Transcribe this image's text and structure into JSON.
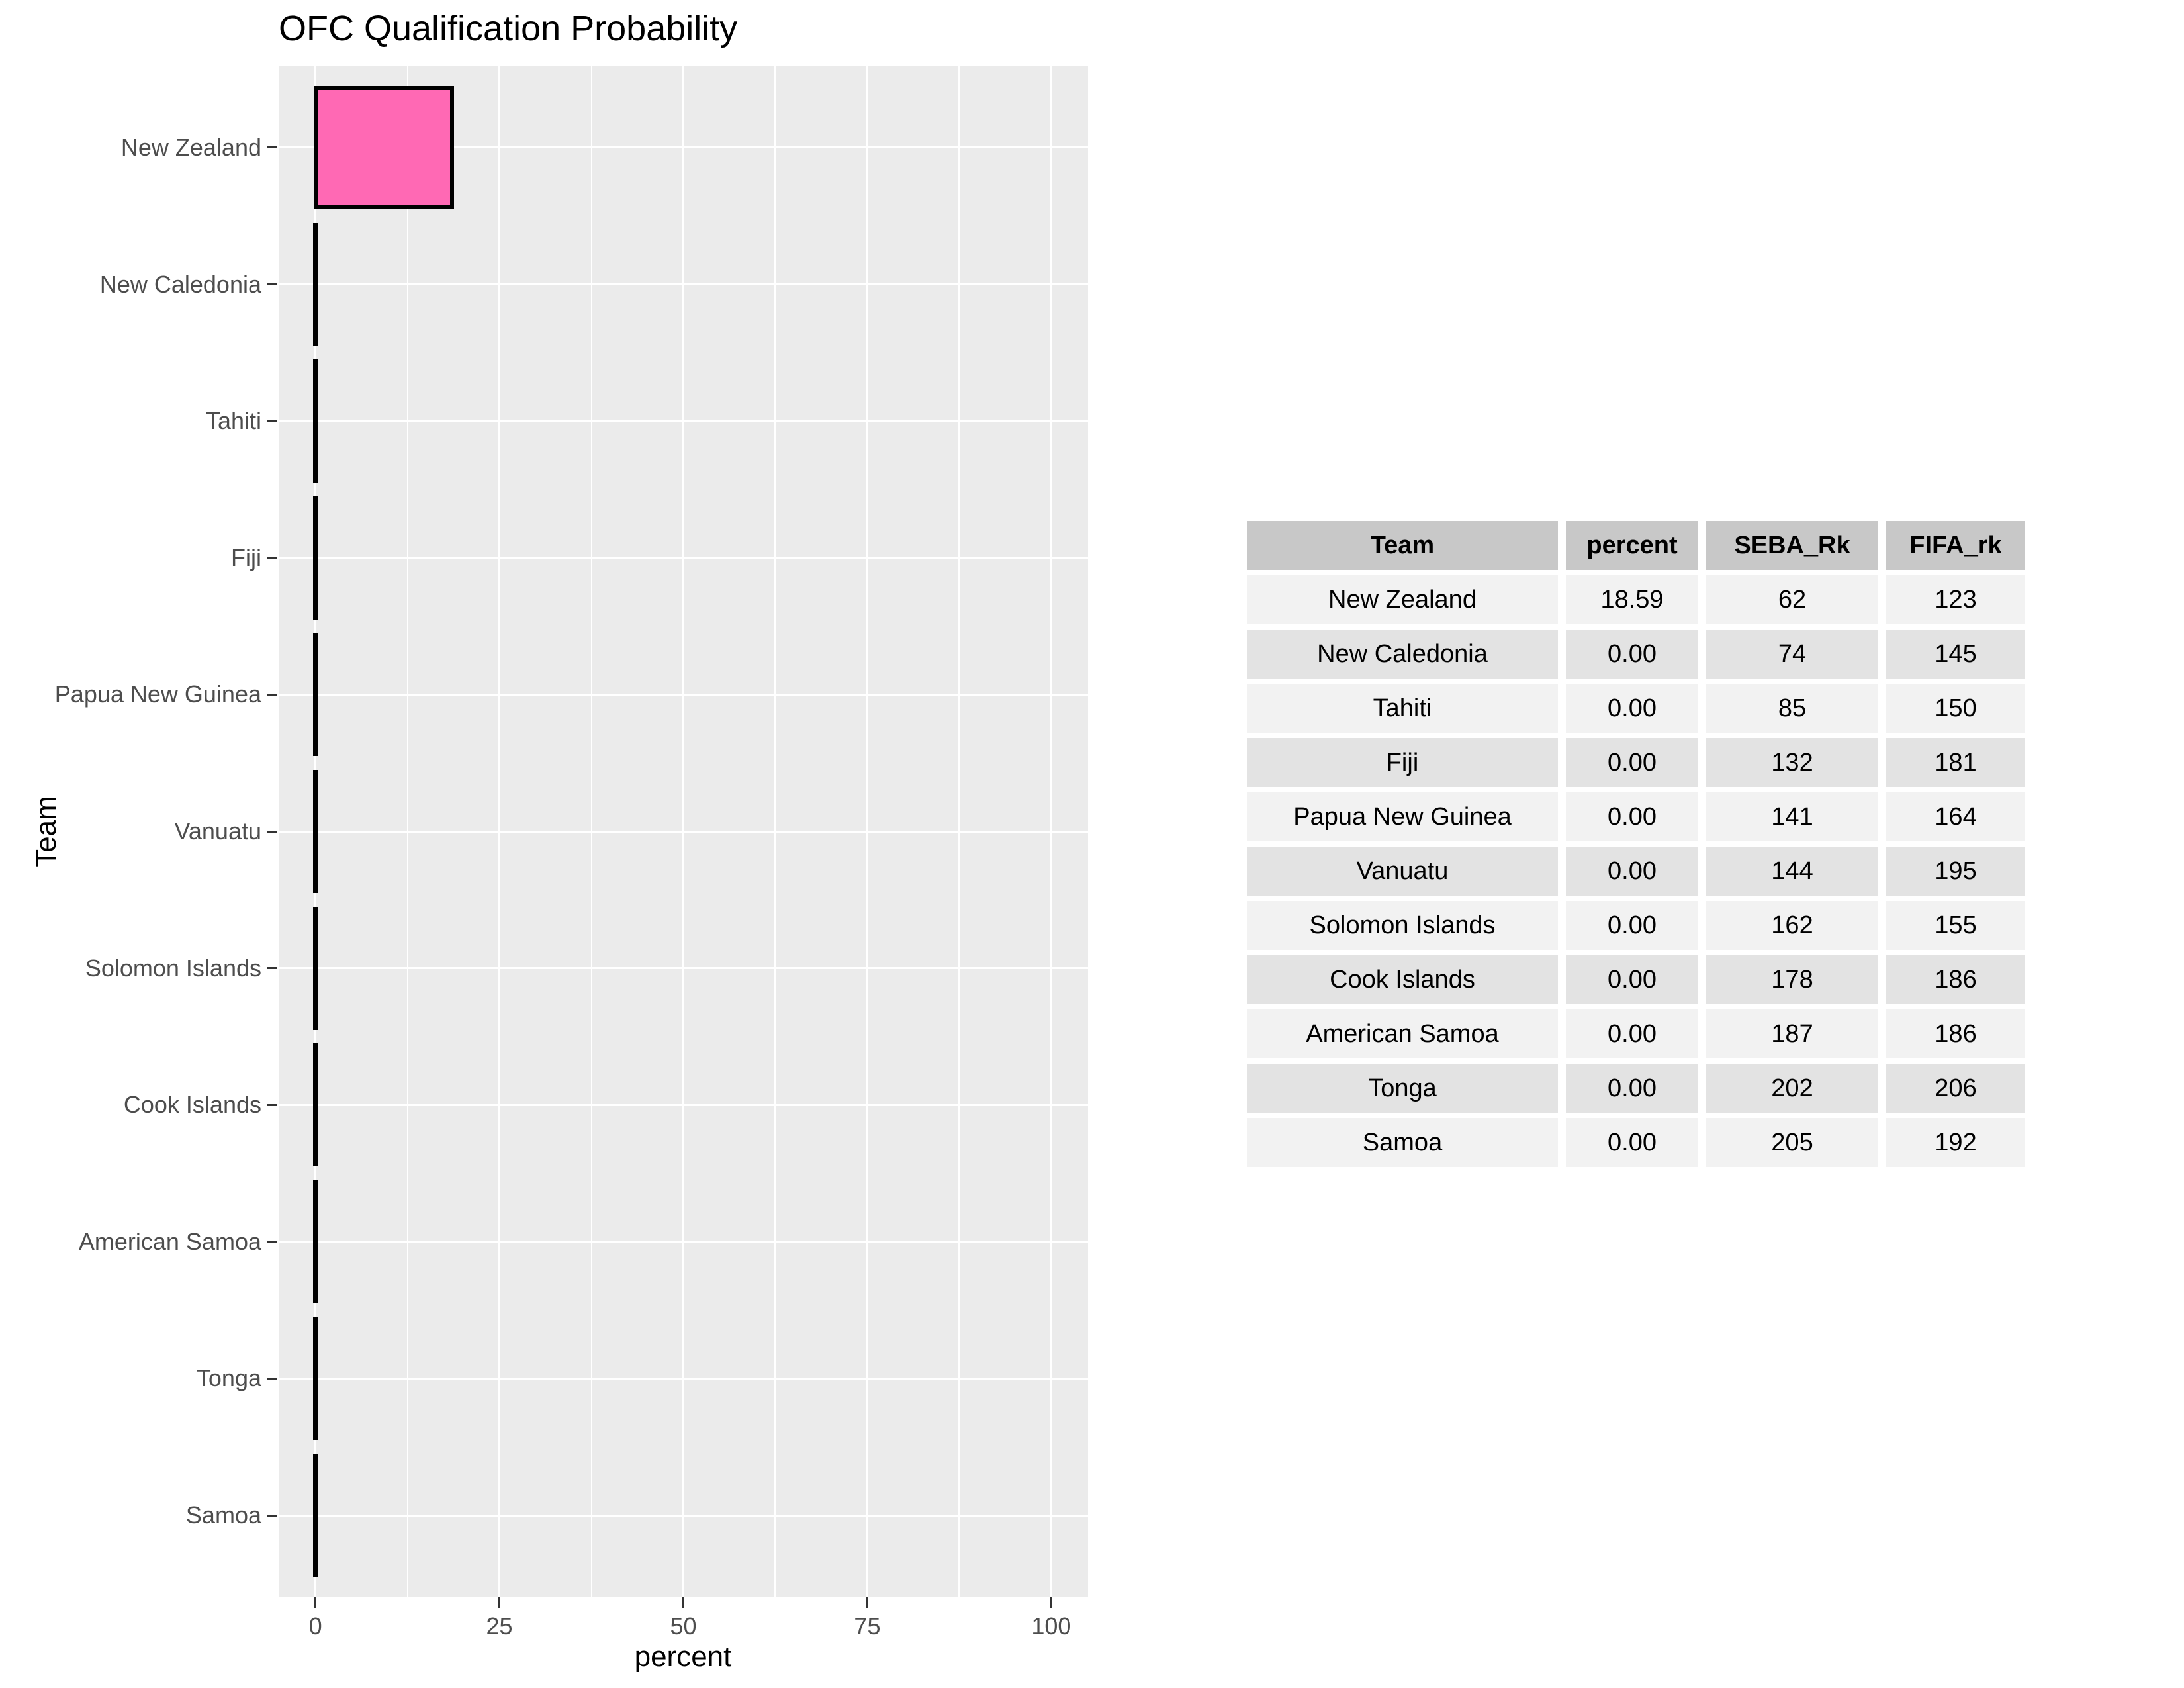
{
  "chart_data": {
    "type": "bar",
    "orientation": "horizontal",
    "title": "OFC Qualification Probability",
    "xlabel": "percent",
    "ylabel": "Team",
    "categories": [
      "New Zealand",
      "New Caledonia",
      "Tahiti",
      "Fiji",
      "Papua New Guinea",
      "Vanuatu",
      "Solomon Islands",
      "Cook Islands",
      "American Samoa",
      "Tonga",
      "Samoa"
    ],
    "values": [
      18.59,
      0,
      0,
      0,
      0,
      0,
      0,
      0,
      0,
      0,
      0
    ],
    "xlim": [
      -5,
      105
    ],
    "xticks": [
      0,
      25,
      50,
      75,
      100
    ],
    "x_minor_gridlines": [
      12.5,
      37.5,
      62.5,
      87.5
    ],
    "grid": "on",
    "legend": "none",
    "panel_bg": "#EBEBEB",
    "grid_color": "#FFFFFF",
    "bar_fill": "#FF69B4",
    "bar_stroke": "#000000",
    "axis_text_color": "#4D4D4D",
    "tick_color": "#333333"
  },
  "table": {
    "headers": [
      "Team",
      "percent",
      "SEBA_Rk",
      "FIFA_rk"
    ],
    "rows": [
      [
        "New Zealand",
        "18.59",
        "62",
        "123"
      ],
      [
        "New Caledonia",
        "0.00",
        "74",
        "145"
      ],
      [
        "Tahiti",
        "0.00",
        "85",
        "150"
      ],
      [
        "Fiji",
        "0.00",
        "132",
        "181"
      ],
      [
        "Papua New Guinea",
        "0.00",
        "141",
        "164"
      ],
      [
        "Vanuatu",
        "0.00",
        "144",
        "195"
      ],
      [
        "Solomon Islands",
        "0.00",
        "162",
        "155"
      ],
      [
        "Cook Islands",
        "0.00",
        "178",
        "186"
      ],
      [
        "American Samoa",
        "0.00",
        "187",
        "186"
      ],
      [
        "Tonga",
        "0.00",
        "202",
        "206"
      ],
      [
        "Samoa",
        "0.00",
        "205",
        "192"
      ]
    ],
    "header_bg": "#C8C8C8",
    "row_bg_odd": "#F2F2F2",
    "row_bg_even": "#E3E3E3"
  }
}
